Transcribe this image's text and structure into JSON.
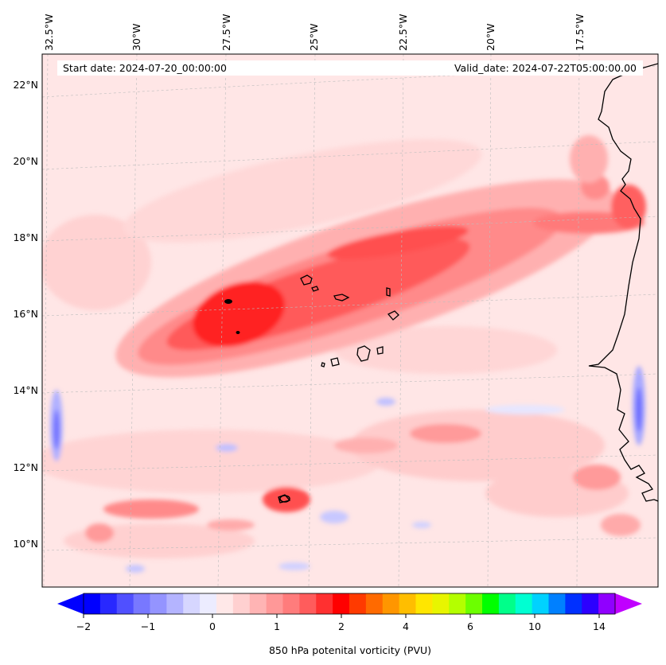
{
  "map": {
    "start_label": "Start date: 2024-07-20_00:00:00",
    "valid_label": "Valid_date: 2024-07-22T05:00:00.00",
    "lon_labels": [
      "32.5°W",
      "30°W",
      "27.5°W",
      "25°W",
      "22.5°W",
      "20°W",
      "17.5°W"
    ],
    "lat_labels": [
      "22°N",
      "20°N",
      "18°N",
      "16°N",
      "14°N",
      "12°N",
      "10°N"
    ],
    "coastline_color": "#000000",
    "gridline_color": "#c8c8c8"
  },
  "colorbar": {
    "label": "850 hPa potenital vorticity (PVU)",
    "tick_labels": [
      "−2",
      "−1",
      "0",
      "1",
      "2",
      "4",
      "6",
      "10",
      "14"
    ],
    "colors": [
      "#0000ff",
      "#2828ff",
      "#5050ff",
      "#7878ff",
      "#9494ff",
      "#b4b4ff",
      "#d6d6ff",
      "#ececff",
      "#ffe8e8",
      "#ffd0d0",
      "#ffb4b4",
      "#ff9898",
      "#ff7c7c",
      "#ff5c5c",
      "#ff3030",
      "#ff0000",
      "#ff3a00",
      "#ff6a00",
      "#ff9600",
      "#ffbe00",
      "#ffe600",
      "#e8f500",
      "#b4ff00",
      "#6cff00",
      "#00ff00",
      "#00ff8a",
      "#00ffd2",
      "#00d2ff",
      "#0080ff",
      "#0030ff",
      "#2c00ff",
      "#9000ff"
    ],
    "under_color": "#0000ff",
    "over_color": "#c000ff"
  }
}
